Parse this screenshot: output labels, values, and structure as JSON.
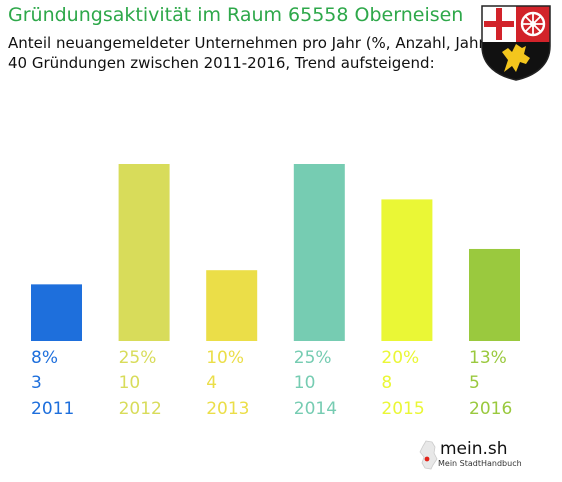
{
  "header": {
    "title": "Gründungsaktivität im Raum 65558 Oberneisen",
    "subtitle_line1": "Anteil neuangemeldeter Unternehmen pro Jahr (%, Anzahl, Jahr)",
    "subtitle_line2": "40 Gründungen zwischen 2011-2016, Trend aufsteigend:"
  },
  "crest": {
    "icon": "rhineland-palatinate-coat-of-arms-icon"
  },
  "logo": {
    "brand": "mein.sh",
    "tagline": "Mein StadtHandbuch",
    "icon": "germany-map-icon"
  },
  "chart_data": {
    "type": "bar",
    "categories": [
      "2011",
      "2012",
      "2013",
      "2014",
      "2015",
      "2016"
    ],
    "values": [
      8,
      25,
      10,
      25,
      20,
      13
    ],
    "value_labels": [
      "8%",
      "25%",
      "10%",
      "25%",
      "20%",
      "13%"
    ],
    "counts": [
      "3",
      "10",
      "4",
      "10",
      "8",
      "5"
    ],
    "colors": [
      "#1e6fdc",
      "#d8dc5a",
      "#ebde48",
      "#76ccb2",
      "#eaf736",
      "#9ac93e"
    ],
    "ylim": [
      0,
      25
    ],
    "grid": false,
    "legend": "none"
  }
}
